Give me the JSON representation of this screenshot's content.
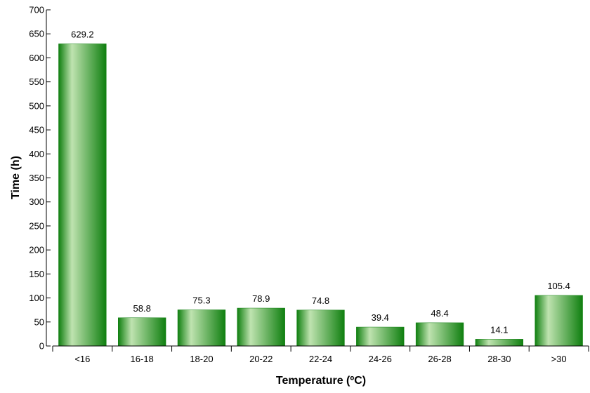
{
  "chart_data": {
    "type": "bar",
    "title": "",
    "xlabel": "Temperature (ºC)",
    "ylabel": "Time (h)",
    "categories": [
      "<16",
      "16-18",
      "18-20",
      "20-22",
      "22-24",
      "24-26",
      "26-28",
      "28-30",
      ">30"
    ],
    "values": [
      629.2,
      58.8,
      75.3,
      78.9,
      74.8,
      39.4,
      48.4,
      14.1,
      105.4
    ],
    "data_labels": [
      "629.2",
      "58.8",
      "75.3",
      "78.9",
      "74.8",
      "39.4",
      "48.4",
      "14.1",
      "105.4"
    ],
    "ylim": [
      0,
      700
    ],
    "yticks": [
      0,
      50,
      100,
      150,
      200,
      250,
      300,
      350,
      400,
      450,
      500,
      550,
      600,
      650,
      700
    ],
    "grid": false,
    "legend": "none",
    "colors": {
      "bar_dark": "#0f7f0f",
      "bar_light": "#bfe3b0",
      "axis": "#000000"
    }
  }
}
